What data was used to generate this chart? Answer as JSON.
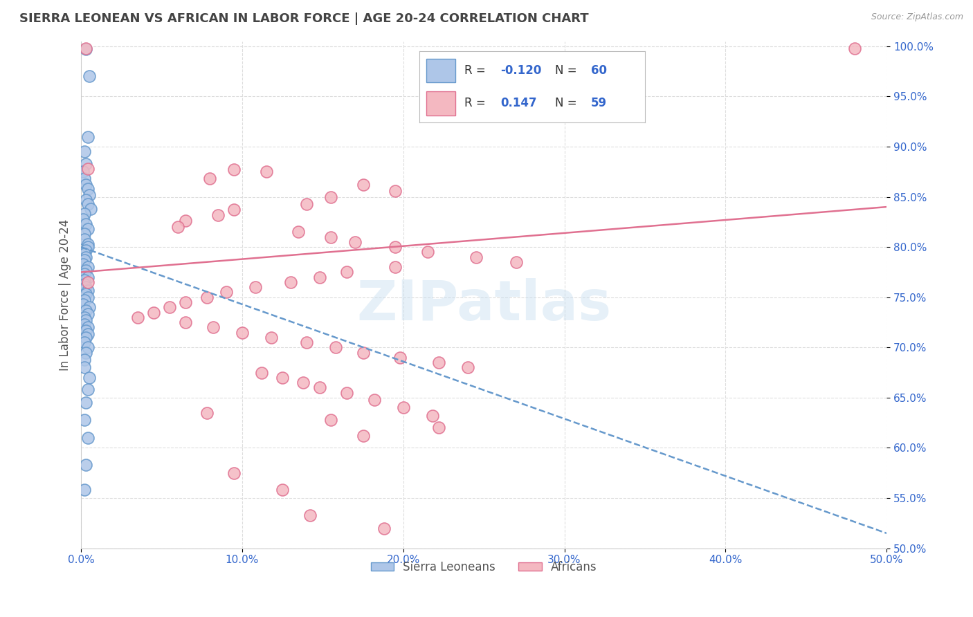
{
  "title": "SIERRA LEONEAN VS AFRICAN IN LABOR FORCE | AGE 20-24 CORRELATION CHART",
  "source": "Source: ZipAtlas.com",
  "ylabel": "In Labor Force | Age 20-24",
  "xmin": 0.0,
  "xmax": 0.5,
  "ymin": 0.5,
  "ymax": 1.005,
  "xticks": [
    0.0,
    0.1,
    0.2,
    0.3,
    0.4,
    0.5
  ],
  "xtick_labels": [
    "0.0%",
    "10.0%",
    "20.0%",
    "30.0%",
    "40.0%",
    "50.0%"
  ],
  "yticks": [
    0.5,
    0.55,
    0.6,
    0.65,
    0.7,
    0.75,
    0.8,
    0.85,
    0.9,
    0.95,
    1.0
  ],
  "ytick_labels": [
    "50.0%",
    "55.0%",
    "60.0%",
    "65.0%",
    "70.0%",
    "75.0%",
    "80.0%",
    "85.0%",
    "90.0%",
    "95.0%",
    "100.0%"
  ],
  "blue_color": "#aec6e8",
  "blue_edge_color": "#6699cc",
  "pink_color": "#f4b8c1",
  "pink_edge_color": "#e07090",
  "blue_R": -0.12,
  "blue_N": 60,
  "pink_R": 0.147,
  "pink_N": 59,
  "legend_label_blue": "Sierra Leoneans",
  "legend_label_pink": "Africans",
  "watermark": "ZIPatlas",
  "background_color": "#ffffff",
  "grid_color": "#dddddd",
  "title_color": "#444444",
  "axis_label_color": "#555555",
  "tick_color": "#3366cc",
  "legend_text_color": "#3366cc",
  "blue_scatter_x": [
    0.003,
    0.005,
    0.004,
    0.002,
    0.003,
    0.001,
    0.002,
    0.003,
    0.004,
    0.005,
    0.003,
    0.004,
    0.006,
    0.002,
    0.001,
    0.003,
    0.004,
    0.002,
    0.002,
    0.004,
    0.004,
    0.003,
    0.002,
    0.003,
    0.002,
    0.001,
    0.004,
    0.003,
    0.002,
    0.004,
    0.002,
    0.002,
    0.003,
    0.004,
    0.003,
    0.004,
    0.002,
    0.001,
    0.005,
    0.003,
    0.004,
    0.002,
    0.003,
    0.002,
    0.004,
    0.003,
    0.004,
    0.003,
    0.002,
    0.004,
    0.003,
    0.002,
    0.002,
    0.005,
    0.004,
    0.003,
    0.002,
    0.004,
    0.003,
    0.002
  ],
  "blue_scatter_y": [
    0.997,
    0.97,
    0.91,
    0.895,
    0.883,
    0.875,
    0.868,
    0.862,
    0.858,
    0.852,
    0.847,
    0.843,
    0.838,
    0.833,
    0.828,
    0.823,
    0.818,
    0.813,
    0.808,
    0.803,
    0.8,
    0.797,
    0.793,
    0.79,
    0.787,
    0.783,
    0.78,
    0.777,
    0.773,
    0.77,
    0.767,
    0.763,
    0.76,
    0.757,
    0.753,
    0.75,
    0.747,
    0.743,
    0.74,
    0.737,
    0.733,
    0.73,
    0.727,
    0.723,
    0.72,
    0.717,
    0.713,
    0.71,
    0.705,
    0.7,
    0.695,
    0.688,
    0.68,
    0.67,
    0.658,
    0.645,
    0.628,
    0.61,
    0.583,
    0.558
  ],
  "pink_scatter_x": [
    0.003,
    0.004,
    0.095,
    0.115,
    0.08,
    0.175,
    0.195,
    0.155,
    0.14,
    0.095,
    0.085,
    0.065,
    0.06,
    0.135,
    0.155,
    0.17,
    0.195,
    0.215,
    0.245,
    0.27,
    0.195,
    0.165,
    0.148,
    0.13,
    0.108,
    0.09,
    0.078,
    0.065,
    0.055,
    0.045,
    0.035,
    0.065,
    0.082,
    0.1,
    0.118,
    0.14,
    0.158,
    0.175,
    0.198,
    0.222,
    0.24,
    0.112,
    0.125,
    0.138,
    0.148,
    0.165,
    0.182,
    0.2,
    0.218,
    0.48,
    0.004,
    0.078,
    0.155,
    0.222,
    0.175,
    0.095,
    0.125,
    0.142,
    0.188
  ],
  "pink_scatter_y": [
    0.998,
    0.878,
    0.877,
    0.875,
    0.868,
    0.862,
    0.856,
    0.85,
    0.843,
    0.837,
    0.832,
    0.826,
    0.82,
    0.815,
    0.81,
    0.805,
    0.8,
    0.795,
    0.79,
    0.785,
    0.78,
    0.775,
    0.77,
    0.765,
    0.76,
    0.755,
    0.75,
    0.745,
    0.74,
    0.735,
    0.73,
    0.725,
    0.72,
    0.715,
    0.71,
    0.705,
    0.7,
    0.695,
    0.69,
    0.685,
    0.68,
    0.675,
    0.67,
    0.665,
    0.66,
    0.655,
    0.648,
    0.64,
    0.632,
    0.998,
    0.765,
    0.635,
    0.628,
    0.62,
    0.612,
    0.575,
    0.558,
    0.533,
    0.52
  ]
}
